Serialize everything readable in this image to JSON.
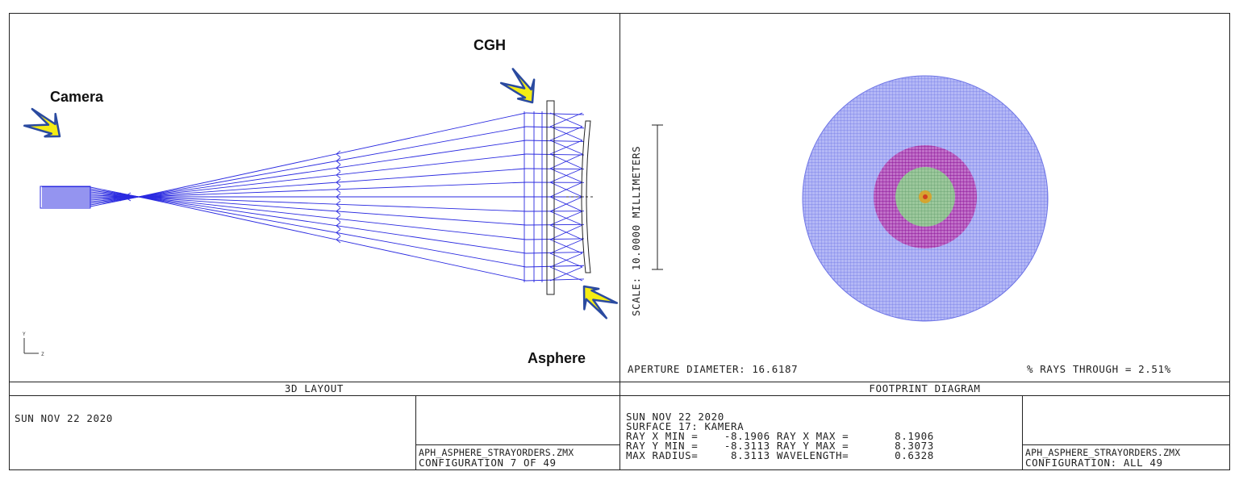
{
  "left_panel": {
    "callouts": {
      "camera": "Camera",
      "cgh": "CGH",
      "asphere": "Asphere"
    },
    "axis_y": "Y",
    "axis_z": "Z",
    "title": "3D LAYOUT",
    "date": "SUN NOV 22 2020",
    "file": "APH_ASPHERE_STRAYORDERS.ZMX",
    "configuration": "CONFIGURATION 7 OF 49"
  },
  "right_panel": {
    "scale_label": "SCALE: 10.0000 MILLIMETERS",
    "aperture_diameter": "APERTURE DIAMETER: 16.6187",
    "rays_through": "% RAYS THROUGH = 2.51%",
    "title": "FOOTPRINT DIAGRAM",
    "info_lines": [
      "SUN NOV 22 2020",
      "SURFACE 17: KAMERA",
      "RAY X MIN =    -8.1906 RAY X MAX =       8.1906",
      "RAY Y MIN =    -8.3113 RAY Y MAX =       8.3073",
      "MAX RADIUS=     8.3113 WAVELENGTH=       0.6328"
    ],
    "file": "APH_ASPHERE_STRAYORDERS.ZMX",
    "configuration": "CONFIGURATION: ALL 49"
  },
  "colors": {
    "ray": "#2a2ae0",
    "footprint_outer": "#8f96f0",
    "footprint_mid": "#a020b0",
    "footprint_inner": "#70a878",
    "footprint_core": "#e0a020",
    "arrow_fill": "#f4ec14",
    "arrow_outline": "#2a4aa0"
  }
}
